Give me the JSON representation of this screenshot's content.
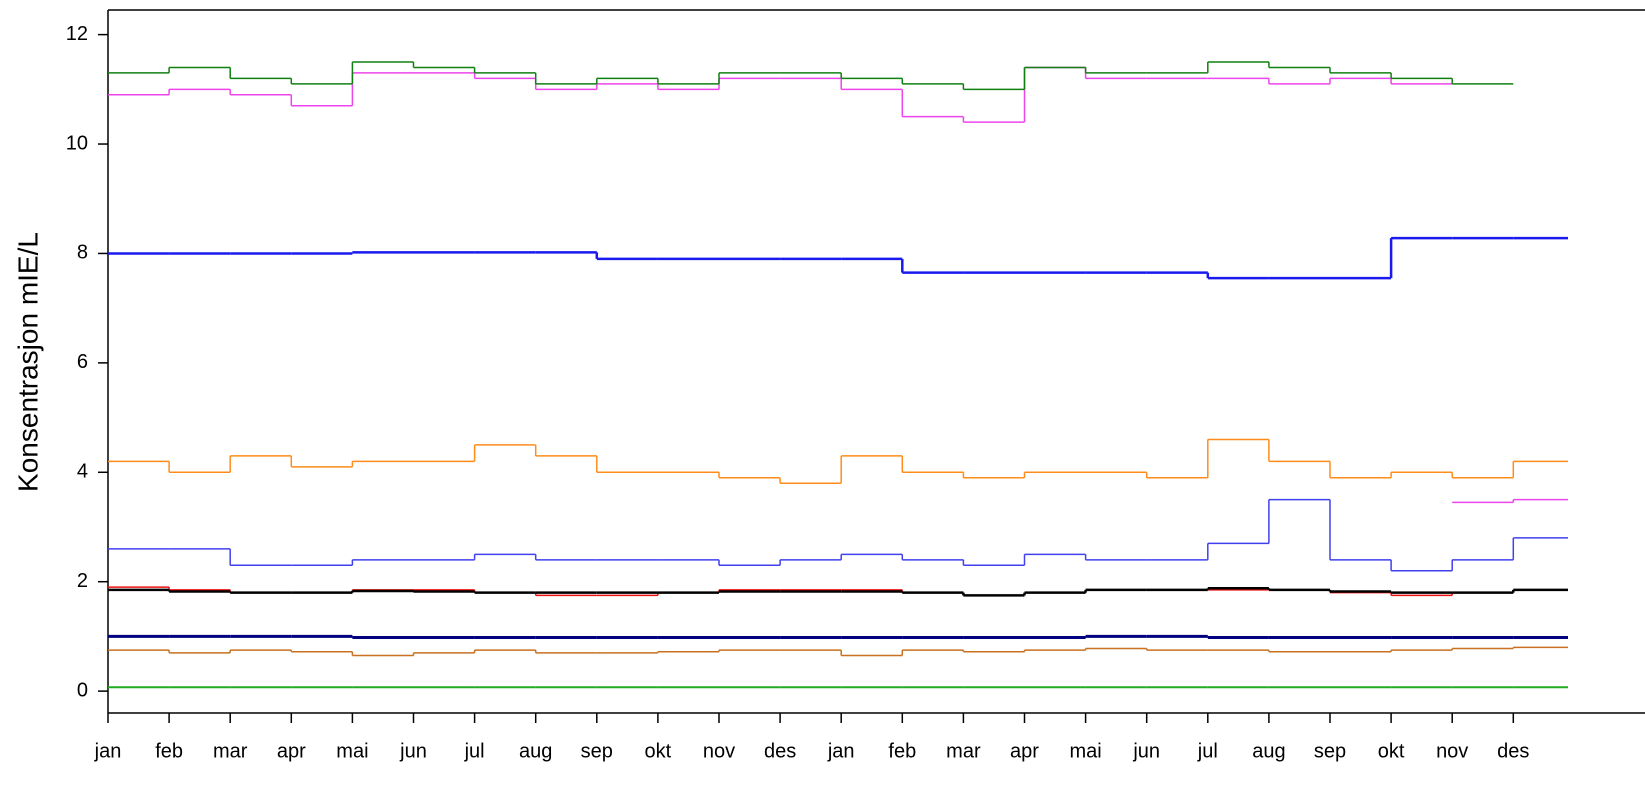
{
  "chart_data": {
    "type": "step",
    "y_label": "Konsentrasjon mIE/L",
    "categories": [
      "jan",
      "feb",
      "mar",
      "apr",
      "mai",
      "jun",
      "jul",
      "aug",
      "sep",
      "okt",
      "nov",
      "des",
      "jan",
      "feb",
      "mar",
      "apr",
      "mai",
      "jun",
      "jul",
      "aug",
      "sep",
      "okt",
      "nov",
      "des"
    ],
    "ylim": [
      -0.4,
      12.45
    ],
    "yticks": [
      0,
      2,
      4,
      6,
      8,
      10,
      12
    ],
    "series": [
      {
        "color": "#22aa22",
        "width": 2,
        "values": [
          0.07,
          0.07,
          0.07,
          0.07,
          0.07,
          0.07,
          0.07,
          0.07,
          0.07,
          0.07,
          0.07,
          0.07,
          0.07,
          0.07,
          0.07,
          0.07,
          0.07,
          0.07,
          0.07,
          0.07,
          0.07,
          0.07,
          0.07,
          0.07
        ]
      },
      {
        "color": "#c87020",
        "width": 1.5,
        "values": [
          0.75,
          0.7,
          0.75,
          0.72,
          0.65,
          0.7,
          0.75,
          0.7,
          0.7,
          0.72,
          0.75,
          0.75,
          0.65,
          0.75,
          0.72,
          0.75,
          0.78,
          0.75,
          0.75,
          0.72,
          0.72,
          0.75,
          0.78,
          0.8
        ]
      },
      {
        "color": "#000080",
        "width": 3,
        "values": [
          1.0,
          1.0,
          1.0,
          1.0,
          0.98,
          0.98,
          0.98,
          0.98,
          0.98,
          0.98,
          0.98,
          0.98,
          0.98,
          0.98,
          0.98,
          0.98,
          1.0,
          1.0,
          0.98,
          0.98,
          0.98,
          0.98,
          0.98,
          0.98
        ]
      },
      {
        "color": "#ee1111",
        "width": 1.5,
        "values": [
          1.9,
          1.85,
          1.8,
          1.8,
          1.85,
          1.85,
          1.8,
          1.75,
          1.75,
          1.8,
          1.85,
          1.85,
          1.85,
          1.8,
          1.75,
          1.8,
          1.85,
          1.85,
          1.85,
          1.85,
          1.8,
          1.75,
          1.8,
          1.85
        ]
      },
      {
        "color": "#000000",
        "width": 2.5,
        "values": [
          1.85,
          1.82,
          1.8,
          1.8,
          1.83,
          1.82,
          1.8,
          1.8,
          1.8,
          1.8,
          1.82,
          1.82,
          1.82,
          1.8,
          1.75,
          1.8,
          1.85,
          1.85,
          1.88,
          1.85,
          1.82,
          1.8,
          1.8,
          1.85
        ]
      },
      {
        "color": "#4040ee",
        "width": 1.5,
        "values": [
          2.6,
          2.6,
          2.3,
          2.3,
          2.4,
          2.4,
          2.5,
          2.4,
          2.4,
          2.4,
          2.3,
          2.4,
          2.5,
          2.4,
          2.3,
          2.5,
          2.4,
          2.4,
          2.7,
          3.5,
          2.4,
          2.2,
          2.4,
          2.8
        ]
      },
      {
        "color": "#ff8c1a",
        "width": 1.5,
        "values": [
          4.2,
          4.0,
          4.3,
          4.1,
          4.2,
          4.2,
          4.5,
          4.3,
          4.0,
          4.0,
          3.9,
          3.8,
          4.3,
          4.0,
          3.9,
          4.0,
          4.0,
          3.9,
          4.6,
          4.2,
          3.9,
          4.0,
          3.9,
          4.2
        ]
      },
      {
        "color": "#ee44ee",
        "width": 1.5,
        "values": [
          null,
          null,
          null,
          null,
          null,
          null,
          null,
          null,
          null,
          null,
          null,
          null,
          null,
          null,
          null,
          null,
          null,
          null,
          null,
          null,
          null,
          null,
          3.45,
          3.5
        ]
      },
      {
        "color": "#1a1aee",
        "width": 2.5,
        "values": [
          8.0,
          8.0,
          8.0,
          8.0,
          8.02,
          8.02,
          8.02,
          8.02,
          7.9,
          7.9,
          7.9,
          7.9,
          7.9,
          7.65,
          7.65,
          7.65,
          7.65,
          7.65,
          7.55,
          7.55,
          7.55,
          8.28,
          8.28,
          8.28
        ]
      },
      {
        "color": "#ee44ee",
        "width": 1.5,
        "values": [
          10.9,
          11.0,
          10.9,
          10.7,
          11.3,
          11.3,
          11.2,
          11.0,
          11.1,
          11.0,
          11.2,
          11.2,
          11.0,
          10.5,
          10.4,
          11.4,
          11.2,
          11.2,
          11.2,
          11.1,
          11.2,
          11.1,
          null,
          null
        ]
      },
      {
        "color": "#108010",
        "width": 1.5,
        "values": [
          11.3,
          11.4,
          11.2,
          11.1,
          11.5,
          11.4,
          11.3,
          11.1,
          11.2,
          11.1,
          11.3,
          11.3,
          11.2,
          11.1,
          11.0,
          11.4,
          11.3,
          11.3,
          11.5,
          11.4,
          11.3,
          11.2,
          11.1,
          null
        ]
      }
    ]
  }
}
